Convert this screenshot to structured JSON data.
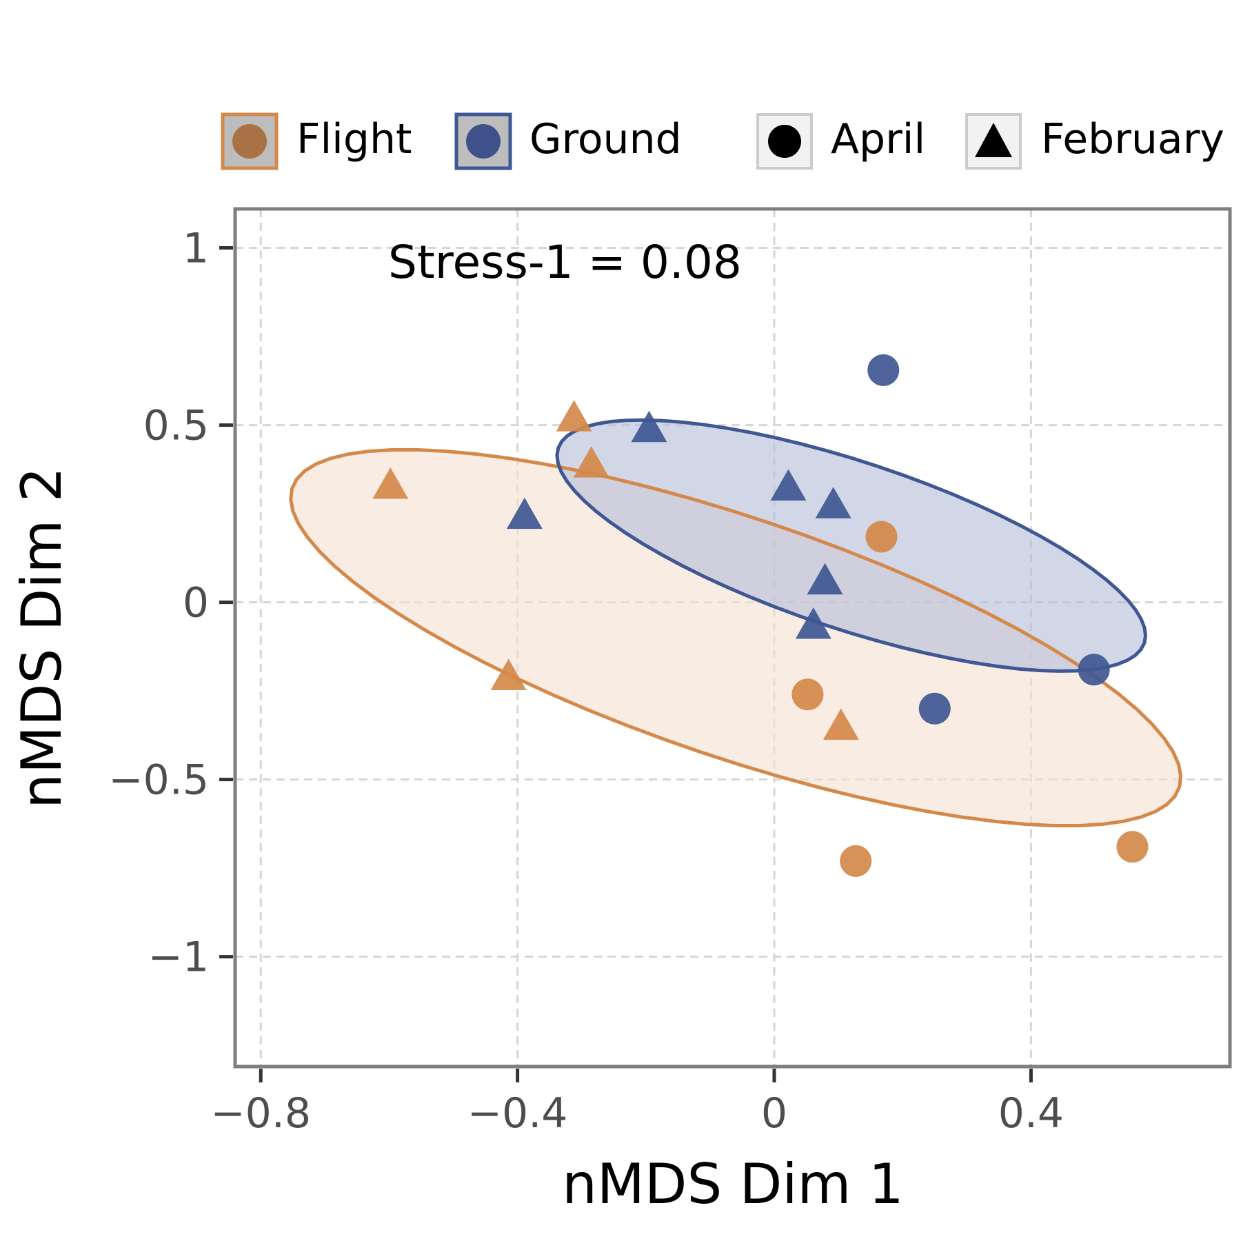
{
  "chart_data": {
    "type": "scatter",
    "xlabel": "nMDS Dim 1",
    "ylabel": "nMDS Dim 2",
    "xlim": [
      -0.84,
      0.71
    ],
    "ylim": [
      -1.31,
      1.11
    ],
    "x_ticks": [
      {
        "value": -0.8,
        "label": "−0.8"
      },
      {
        "value": -0.4,
        "label": "−0.4"
      },
      {
        "value": 0,
        "label": "0"
      },
      {
        "value": 0.4,
        "label": "0.4"
      }
    ],
    "y_ticks": [
      {
        "value": 1,
        "label": "1"
      },
      {
        "value": 0.5,
        "label": "0.5"
      },
      {
        "value": 0,
        "label": "0"
      },
      {
        "value": -0.5,
        "label": "−0.5"
      },
      {
        "value": -1,
        "label": "−1"
      }
    ],
    "grid": true,
    "annotation": "Stress-1 = 0.08",
    "legend": {
      "placement": "top",
      "groups": [
        {
          "label": "Flight",
          "color": "#d4894a"
        },
        {
          "label": "Ground",
          "color": "#3f5793"
        }
      ],
      "months": [
        {
          "label": "April",
          "shape": "circle"
        },
        {
          "label": "February",
          "shape": "triangle"
        }
      ]
    },
    "ellipses": [
      {
        "group": "Flight",
        "cx": -0.06,
        "cy": -0.1,
        "a": 0.82,
        "b": 0.3,
        "angle_deg": -35,
        "stroke": "#d4894a",
        "fill": "#f4e0d1"
      },
      {
        "group": "Ground",
        "cx": 0.12,
        "cy": 0.16,
        "a": 0.54,
        "b": 0.21,
        "angle_deg": -35,
        "stroke": "#3f5793",
        "fill": "#b4bcd9"
      }
    ],
    "points": [
      {
        "group": "Flight",
        "month": "February",
        "x": -0.598,
        "y": 0.33
      },
      {
        "group": "Flight",
        "month": "February",
        "x": -0.312,
        "y": 0.52
      },
      {
        "group": "Flight",
        "month": "February",
        "x": -0.285,
        "y": 0.39
      },
      {
        "group": "Flight",
        "month": "February",
        "x": -0.414,
        "y": -0.21
      },
      {
        "group": "Flight",
        "month": "February",
        "x": 0.104,
        "y": -0.35
      },
      {
        "group": "Flight",
        "month": "April",
        "x": 0.167,
        "y": 0.185
      },
      {
        "group": "Flight",
        "month": "April",
        "x": 0.052,
        "y": -0.26
      },
      {
        "group": "Flight",
        "month": "April",
        "x": 0.127,
        "y": -0.73
      },
      {
        "group": "Flight",
        "month": "April",
        "x": 0.558,
        "y": -0.69
      },
      {
        "group": "Ground",
        "month": "February",
        "x": -0.195,
        "y": 0.49
      },
      {
        "group": "Ground",
        "month": "February",
        "x": -0.389,
        "y": 0.245
      },
      {
        "group": "Ground",
        "month": "February",
        "x": 0.022,
        "y": 0.325
      },
      {
        "group": "Ground",
        "month": "February",
        "x": 0.092,
        "y": 0.275
      },
      {
        "group": "Ground",
        "month": "February",
        "x": 0.079,
        "y": 0.06
      },
      {
        "group": "Ground",
        "month": "February",
        "x": 0.061,
        "y": -0.065
      },
      {
        "group": "Ground",
        "month": "April",
        "x": 0.17,
        "y": 0.655
      },
      {
        "group": "Ground",
        "month": "April",
        "x": 0.498,
        "y": -0.19
      },
      {
        "group": "Ground",
        "month": "April",
        "x": 0.25,
        "y": -0.3
      }
    ]
  }
}
